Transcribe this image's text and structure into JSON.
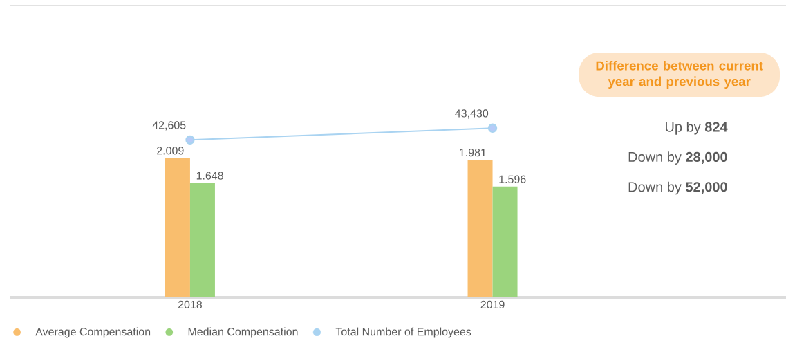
{
  "chart_data": {
    "type": "bar",
    "categories": [
      "2018",
      "2019"
    ],
    "series": [
      {
        "name": "Average Compensation",
        "color": "#f9be6e",
        "values": [
          2.009,
          1.981
        ],
        "value_labels": [
          "2.009",
          "1.981"
        ]
      },
      {
        "name": "Median Compensation",
        "color": "#9bd47d",
        "values": [
          1.648,
          1.596
        ],
        "value_labels": [
          "1.648",
          "1.596"
        ]
      },
      {
        "name": "Total Number of Employees",
        "type": "line",
        "axis": "y2",
        "marker": "circle",
        "color": "#a9d3f1",
        "values": [
          42605,
          43430
        ],
        "value_labels": [
          "42,605",
          "43,430"
        ]
      }
    ],
    "ylim": [
      0,
      4.2
    ],
    "y2lim": [
      31600,
      52000
    ],
    "tick_labels": "x",
    "legend": "bottom left",
    "annotations": [
      "Difference between current year and previous year",
      "Up by **824**",
      "Down by **28,000**",
      "Down by **52,000**"
    ]
  }
}
